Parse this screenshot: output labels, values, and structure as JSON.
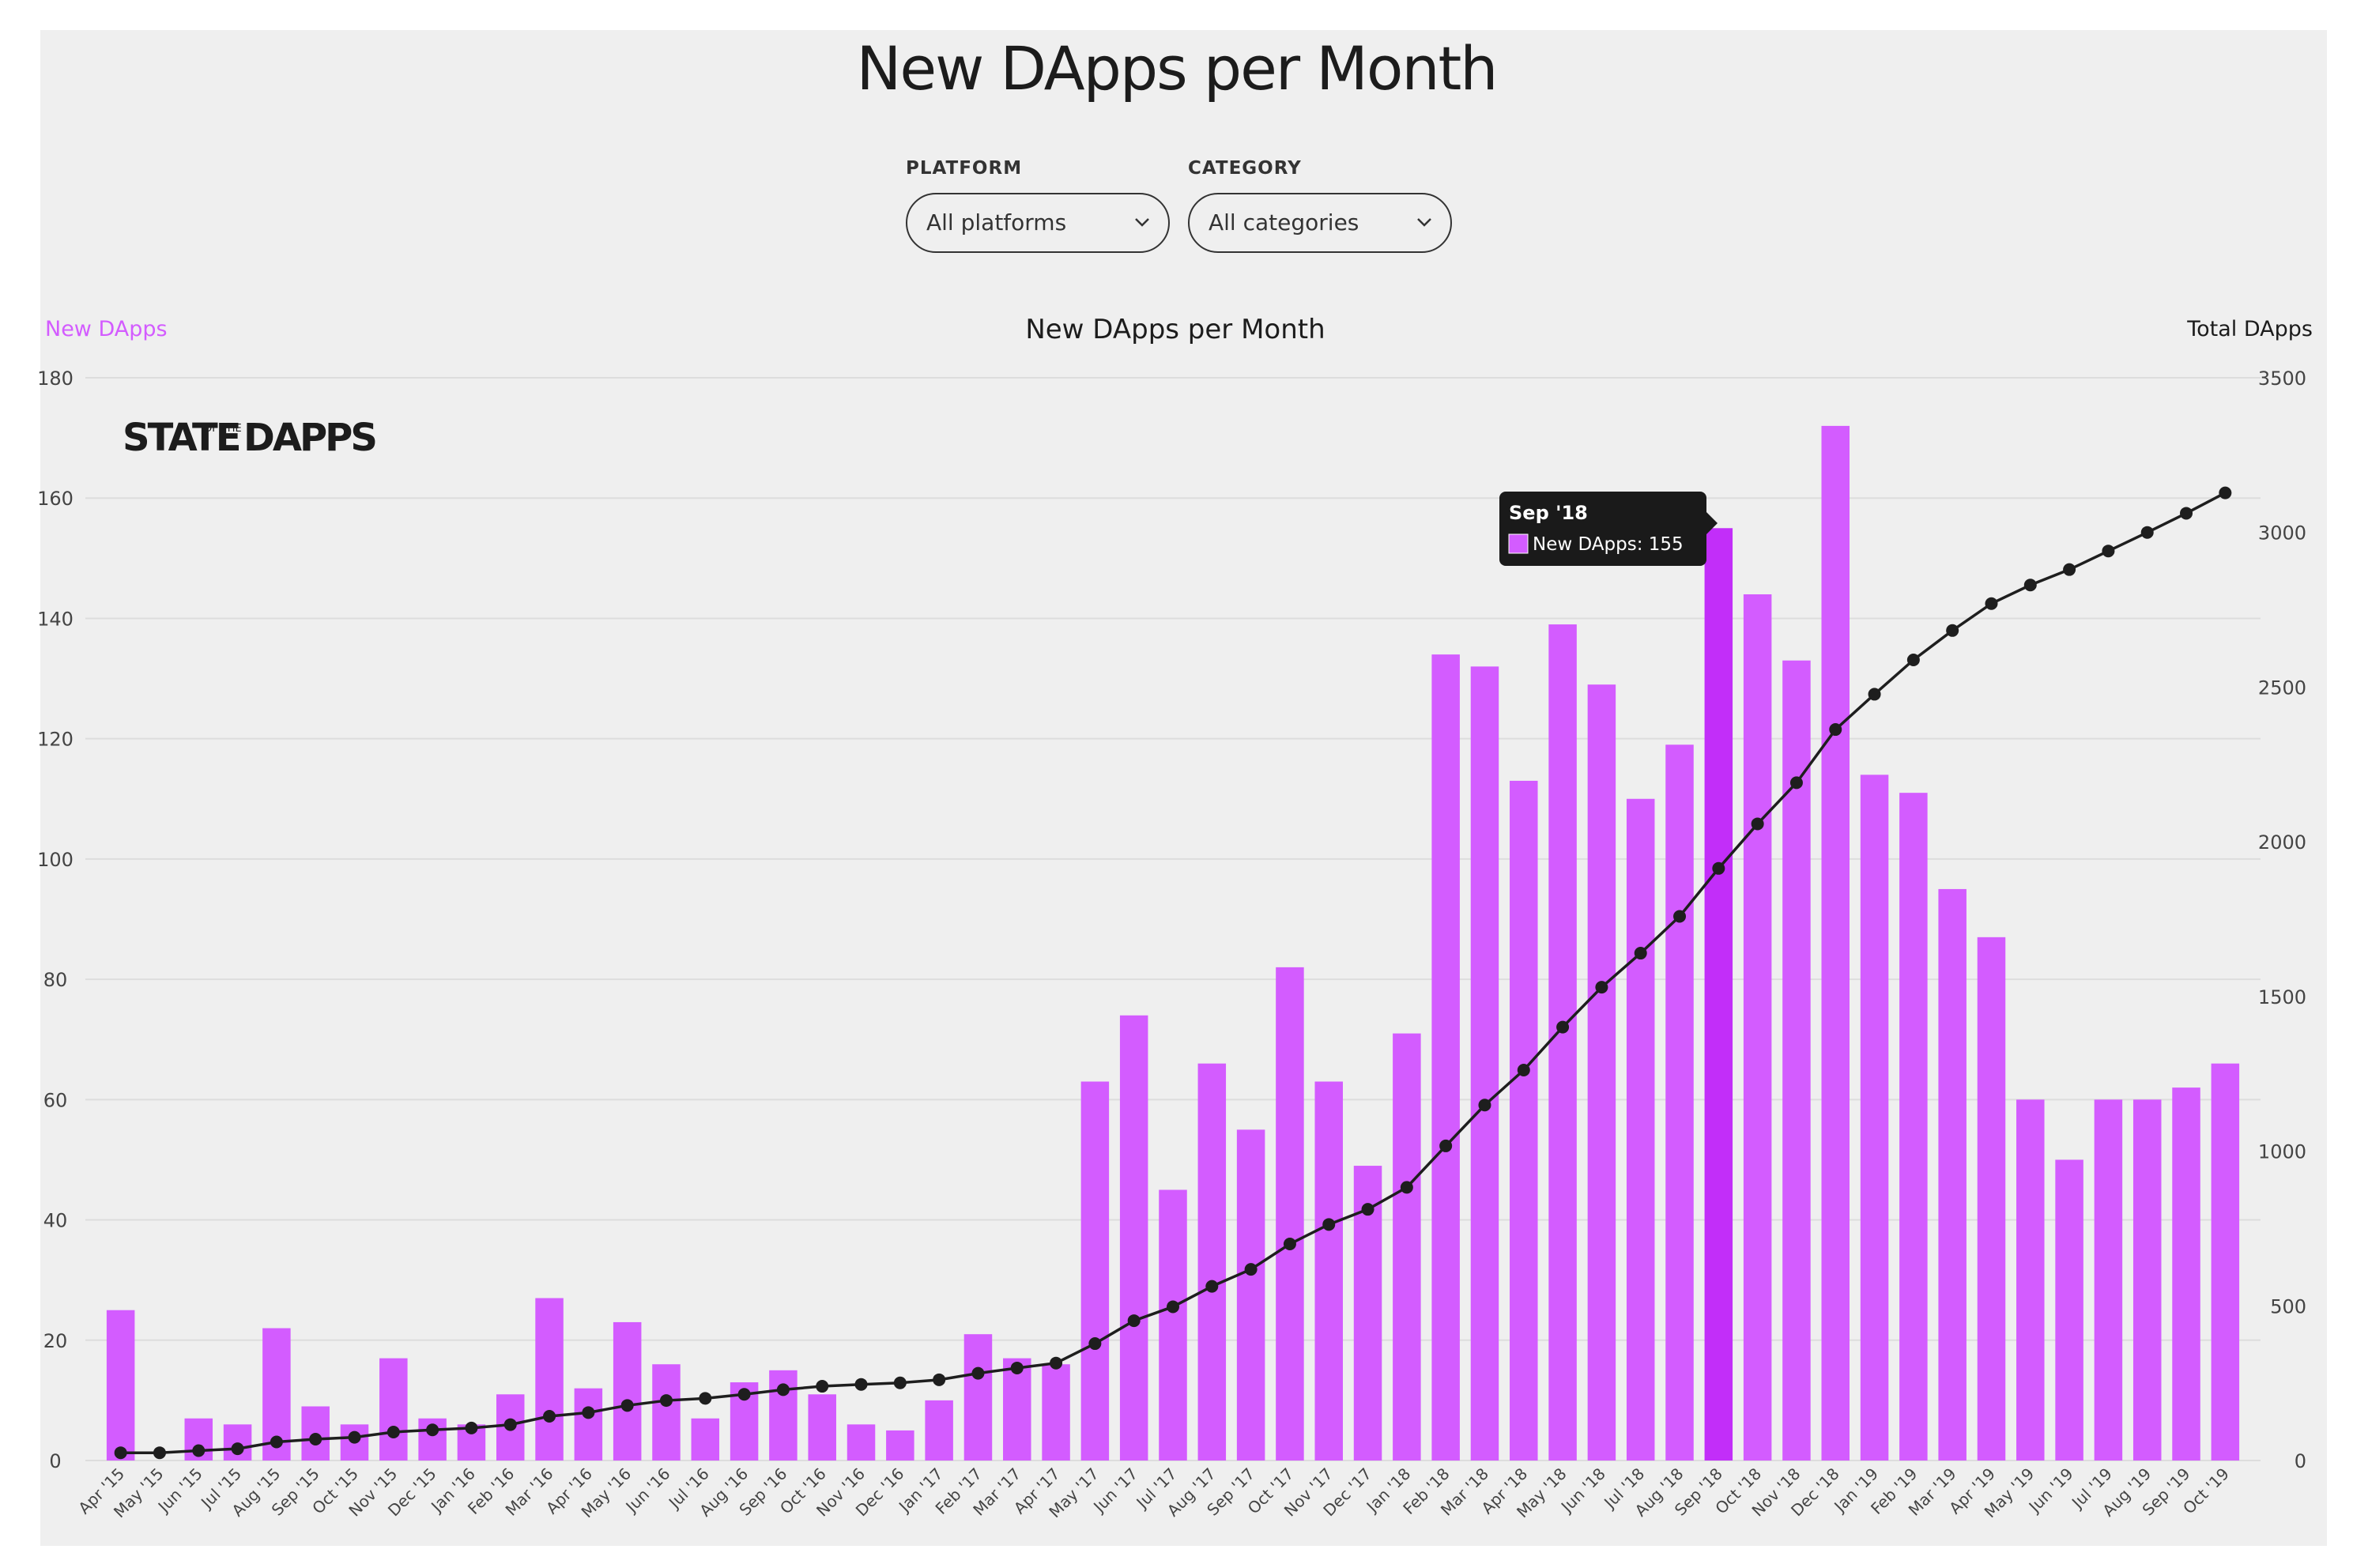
{
  "page": {
    "title": "New DApps per Month"
  },
  "filters": {
    "platform": {
      "label": "PLATFORM",
      "value": "All platforms"
    },
    "category": {
      "label": "CATEGORY",
      "value": "All categories"
    }
  },
  "colors": {
    "bar": "#d35cff",
    "bar_highlight": "#c22ef9",
    "line": "#1e1e1e",
    "left_axis_title": "#d35cff",
    "grid": "#dddddd",
    "tooltip_bg": "#1a1a1a"
  },
  "logo": {
    "text_main_left": "STATE",
    "text_small": "OF THE",
    "text_main_right": "DAPPS"
  },
  "tooltip": {
    "title": "Sep '18",
    "label": "New DApps: 155",
    "category_index": 41
  },
  "chart_data": {
    "type": "bar+line",
    "title": "New DApps per Month",
    "ylabel_left": "New DApps",
    "ylabel_right": "Total DApps",
    "ylim_left": [
      0,
      180
    ],
    "yticks_left": [
      0,
      20,
      40,
      60,
      80,
      100,
      120,
      140,
      160,
      180
    ],
    "ylim_right": [
      0,
      3500
    ],
    "yticks_right": [
      0,
      500,
      1000,
      1500,
      2000,
      2500,
      3000,
      3500
    ],
    "grid": true,
    "categories": [
      "Apr '15",
      "May '15",
      "Jun '15",
      "Jul '15",
      "Aug '15",
      "Sep '15",
      "Oct '15",
      "Nov '15",
      "Dec '15",
      "Jan '16",
      "Feb '16",
      "Mar '16",
      "Apr '16",
      "May '16",
      "Jun '16",
      "Jul '16",
      "Aug '16",
      "Sep '16",
      "Oct '16",
      "Nov '16",
      "Dec '16",
      "Jan '17",
      "Feb '17",
      "Mar '17",
      "Apr '17",
      "May '17",
      "Jun '17",
      "Jul '17",
      "Aug '17",
      "Sep '17",
      "Oct '17",
      "Nov '17",
      "Dec '17",
      "Jan '18",
      "Feb '18",
      "Mar '18",
      "Apr '18",
      "May '18",
      "Jun '18",
      "Jul '18",
      "Aug '18",
      "Sep '18",
      "Oct '18",
      "Nov '18",
      "Dec '18",
      "Jan '19",
      "Feb '19",
      "Mar '19",
      "Apr '19",
      "May '19",
      "Jun '19",
      "Jul '19",
      "Aug '19",
      "Sep '19",
      "Oct '19"
    ],
    "series": [
      {
        "name": "New DApps",
        "type": "bar",
        "axis": "left",
        "values": [
          25,
          0,
          7,
          6,
          22,
          9,
          6,
          17,
          7,
          6,
          11,
          27,
          12,
          23,
          16,
          7,
          13,
          15,
          11,
          6,
          5,
          10,
          21,
          17,
          16,
          63,
          74,
          45,
          66,
          55,
          82,
          63,
          49,
          71,
          134,
          132,
          113,
          139,
          129,
          110,
          119,
          155,
          144,
          133,
          172,
          114,
          111,
          95,
          87,
          60,
          50,
          60,
          60,
          62,
          66
        ]
      },
      {
        "name": "Total DApps",
        "type": "line",
        "axis": "right",
        "values": [
          25,
          25,
          32,
          38,
          60,
          69,
          75,
          92,
          99,
          105,
          116,
          143,
          155,
          178,
          194,
          201,
          214,
          229,
          240,
          246,
          251,
          261,
          282,
          299,
          315,
          378,
          452,
          497,
          563,
          618,
          700,
          763,
          812,
          883,
          1017,
          1149,
          1262,
          1401,
          1530,
          1640,
          1759,
          1914,
          2058,
          2191,
          2363,
          2477,
          2588,
          2683,
          2770,
          2830,
          2880,
          2940,
          3000,
          3062,
          3128
        ]
      }
    ]
  }
}
